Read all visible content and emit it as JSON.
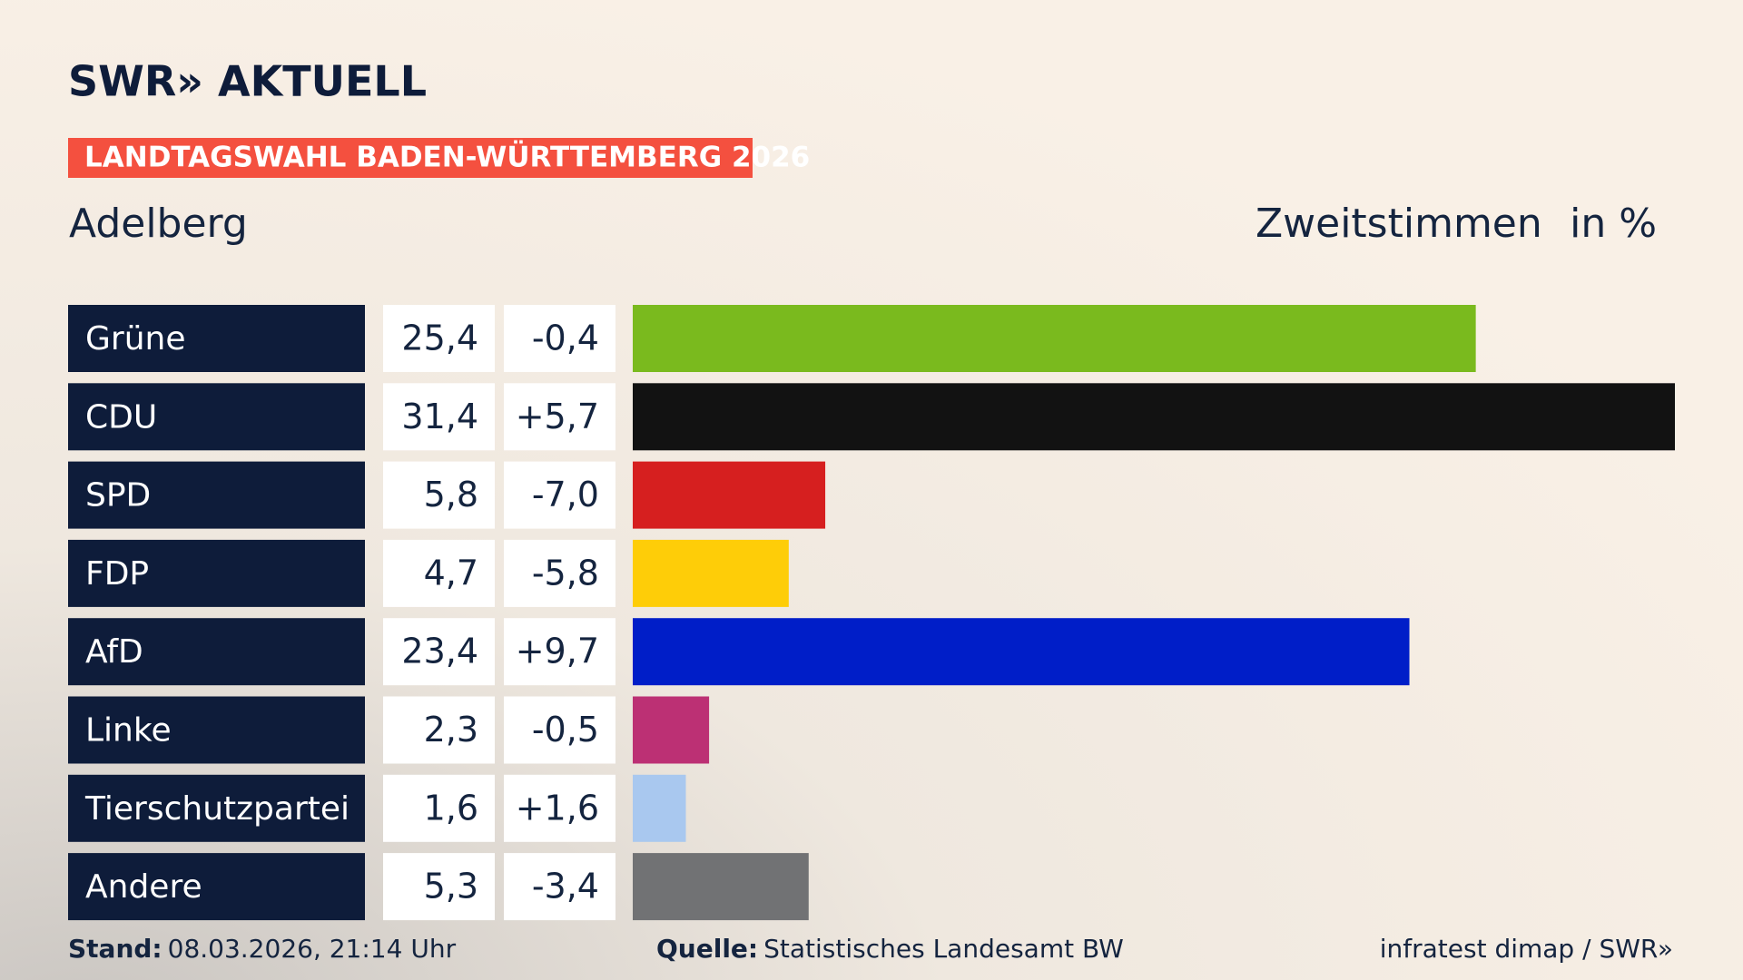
{
  "brand": "SWR» AKTUELL",
  "banner": "LANDTAGSWAHL BADEN-WÜRTTEMBERG 2026",
  "footer": {
    "stand_label": "Stand:",
    "stand": "08.03.2026, 21:14 Uhr",
    "source_label": "Quelle:",
    "source": "Statistisches Landesamt BW",
    "credit": "infratest dimap / SWR»"
  },
  "chart_data": {
    "type": "bar",
    "title": "Adelberg",
    "subtitle": "Zweitstimmen",
    "unit": "in %",
    "categories": [
      "Grüne",
      "CDU",
      "SPD",
      "FDP",
      "AfD",
      "Linke",
      "Tierschutzpartei",
      "Andere"
    ],
    "values": [
      25.4,
      31.4,
      5.8,
      4.7,
      23.4,
      2.3,
      1.6,
      5.3
    ],
    "value_labels": [
      "25,4",
      "31,4",
      "5,8",
      "4,7",
      "23,4",
      "2,3",
      "1,6",
      "5,3"
    ],
    "changes": [
      -0.4,
      5.7,
      -7.0,
      -5.8,
      9.7,
      -0.5,
      1.6,
      -3.4
    ],
    "change_labels": [
      "-0,4",
      "+5,7",
      "-7,0",
      "-5,8",
      "+9,7",
      "-0,5",
      "+1,6",
      "-3,4"
    ],
    "colors": [
      "#7aba1e",
      "#121212",
      "#d61f1f",
      "#fecd08",
      "#001ec8",
      "#bc3074",
      "#a9c8ef",
      "#717274"
    ]
  }
}
